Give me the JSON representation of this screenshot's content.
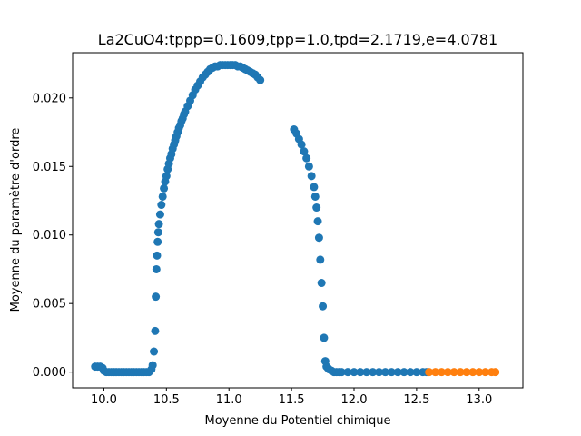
{
  "chart_data": {
    "type": "scatter",
    "title": "La2CuO4:tppp=0.1609,tpp=1.0,tpd=2.1719,e=4.0781",
    "xlabel": "Moyenne du Potentiel chimique",
    "ylabel": "Moyenne du paramètre d'ordre",
    "xlim": [
      9.75,
      13.35
    ],
    "ylim": [
      -0.00115,
      0.0233
    ],
    "x_ticks": [
      10.0,
      10.5,
      11.0,
      11.5,
      12.0,
      12.5,
      13.0
    ],
    "x_tick_labels": [
      "10.0",
      "10.5",
      "11.0",
      "11.5",
      "12.0",
      "12.5",
      "13.0"
    ],
    "y_ticks": [
      0.0,
      0.005,
      0.01,
      0.015,
      0.02
    ],
    "y_tick_labels": [
      "0.000",
      "0.005",
      "0.010",
      "0.015",
      "0.020"
    ],
    "grid": false,
    "legend": "none",
    "series": [
      {
        "color": "#1f77b4",
        "x": [
          9.93,
          9.95,
          9.97,
          9.99,
          10.0,
          10.02,
          10.04,
          10.06,
          10.08,
          10.1,
          10.12,
          10.14,
          10.16,
          10.18,
          10.2,
          10.22,
          10.24,
          10.26,
          10.28,
          10.3,
          10.32,
          10.34,
          10.36,
          10.38,
          10.39,
          10.4,
          10.41,
          10.415,
          10.42,
          10.425,
          10.43,
          10.435,
          10.44,
          10.45,
          10.46,
          10.47,
          10.48,
          10.49,
          10.5,
          10.51,
          10.52,
          10.53,
          10.54,
          10.55,
          10.56,
          10.57,
          10.58,
          10.59,
          10.6,
          10.61,
          10.62,
          10.63,
          10.64,
          10.65,
          10.67,
          10.69,
          10.71,
          10.73,
          10.75,
          10.77,
          10.79,
          10.81,
          10.83,
          10.85,
          10.87,
          10.89,
          10.91,
          10.93,
          10.95,
          10.97,
          10.99,
          11.01,
          11.03,
          11.05,
          11.07,
          11.09,
          11.11,
          11.13,
          11.15,
          11.17,
          11.19,
          11.21,
          11.23,
          11.25,
          11.52,
          11.54,
          11.56,
          11.58,
          11.6,
          11.62,
          11.64,
          11.66,
          11.68,
          11.69,
          11.7,
          11.71,
          11.72,
          11.73,
          11.74,
          11.75,
          11.76,
          11.77,
          11.78,
          11.79,
          11.8,
          11.82,
          11.84,
          11.86,
          11.88,
          11.9,
          11.95,
          12.0,
          12.05,
          12.1,
          12.15,
          12.2,
          12.25,
          12.3,
          12.35,
          12.4,
          12.45,
          12.5,
          12.55,
          12.58
        ],
        "y": [
          0.0004,
          0.0004,
          0.0004,
          0.0003,
          0.0001,
          0.0,
          0.0,
          0.0,
          0.0,
          0.0,
          0.0,
          0.0,
          0.0,
          0.0,
          0.0,
          0.0,
          0.0,
          0.0,
          0.0,
          0.0,
          0.0,
          0.0,
          0.0,
          0.0002,
          0.0005,
          0.0015,
          0.003,
          0.0055,
          0.0075,
          0.0085,
          0.0095,
          0.0102,
          0.0108,
          0.0115,
          0.0122,
          0.0128,
          0.0134,
          0.0139,
          0.0143,
          0.0148,
          0.0152,
          0.0156,
          0.0159,
          0.0163,
          0.0166,
          0.0169,
          0.0172,
          0.0175,
          0.0178,
          0.018,
          0.0183,
          0.0185,
          0.0188,
          0.019,
          0.0194,
          0.0198,
          0.0202,
          0.0206,
          0.0209,
          0.0212,
          0.0215,
          0.0217,
          0.0219,
          0.0221,
          0.0222,
          0.0223,
          0.0223,
          0.0224,
          0.0224,
          0.0224,
          0.0224,
          0.0224,
          0.0224,
          0.0224,
          0.0223,
          0.0223,
          0.0222,
          0.0221,
          0.022,
          0.0219,
          0.0218,
          0.0217,
          0.0215,
          0.0213,
          0.0177,
          0.0174,
          0.017,
          0.0166,
          0.0161,
          0.0156,
          0.015,
          0.0143,
          0.0135,
          0.0128,
          0.012,
          0.011,
          0.0098,
          0.0082,
          0.0065,
          0.0048,
          0.0025,
          0.0008,
          0.0004,
          0.0003,
          0.0002,
          0.0001,
          0.0,
          0.0,
          0.0,
          0.0,
          0.0,
          0.0,
          0.0,
          0.0,
          0.0,
          0.0,
          0.0,
          0.0,
          0.0,
          0.0,
          0.0,
          0.0,
          0.0,
          0.0
        ]
      },
      {
        "color": "#ff7f0e",
        "x": [
          12.6,
          12.65,
          12.7,
          12.75,
          12.8,
          12.85,
          12.9,
          12.95,
          13.0,
          13.05,
          13.1,
          13.13
        ],
        "y": [
          0.0,
          0.0,
          0.0,
          0.0,
          0.0,
          0.0,
          0.0,
          0.0,
          0.0,
          0.0,
          0.0,
          0.0
        ]
      }
    ]
  }
}
